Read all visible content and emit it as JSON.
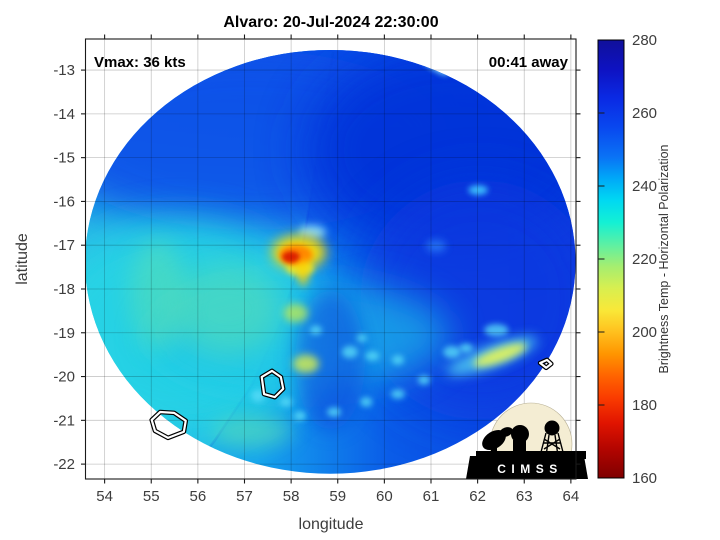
{
  "figure": {
    "title": "Alvaro: 20-Jul-2024 22:30:00",
    "annotation_vmax": "Vmax: 36 kts",
    "annotation_time": "00:41 away",
    "background": "#ffffff"
  },
  "logo": {
    "label": "CIMSS"
  },
  "chart_data": {
    "type": "heatmap",
    "title": "Alvaro: 20-Jul-2024 22:30:00",
    "xlabel": "longitude",
    "ylabel": "latitude",
    "xlim": [
      53.59,
      64.11
    ],
    "ylim": [
      -22.34,
      -12.29
    ],
    "xticks": [
      54,
      55,
      56,
      57,
      58,
      59,
      60,
      61,
      62,
      63,
      64
    ],
    "yticks": [
      -13,
      -14,
      -15,
      -16,
      -17,
      -18,
      -19,
      -20,
      -21,
      -22
    ],
    "grid": true,
    "annotations": [
      {
        "text": "Vmax: 36 kts",
        "corner": "top-left"
      },
      {
        "text": "00:41 away",
        "corner": "top-right"
      }
    ],
    "colorbar": {
      "label": "Brightness Temp - Horizontal Polarization",
      "ticks": [
        280,
        260,
        240,
        220,
        200,
        180,
        160
      ],
      "range": [
        160,
        280
      ],
      "colormap": [
        {
          "value": 160,
          "color": "#7f0000"
        },
        {
          "value": 168,
          "color": "#b30500"
        },
        {
          "value": 175,
          "color": "#e01400"
        },
        {
          "value": 182,
          "color": "#fa3c00"
        },
        {
          "value": 188,
          "color": "#ff6400"
        },
        {
          "value": 194,
          "color": "#ff9500"
        },
        {
          "value": 200,
          "color": "#ffc01e"
        },
        {
          "value": 206,
          "color": "#f9e838"
        },
        {
          "value": 212,
          "color": "#d8ef50"
        },
        {
          "value": 218,
          "color": "#a5ee70"
        },
        {
          "value": 224,
          "color": "#5cf0a4"
        },
        {
          "value": 230,
          "color": "#14f0d4"
        },
        {
          "value": 236,
          "color": "#00d9f2"
        },
        {
          "value": 242,
          "color": "#00a9f8"
        },
        {
          "value": 248,
          "color": "#0a72f5"
        },
        {
          "value": 256,
          "color": "#0948ef"
        },
        {
          "value": 264,
          "color": "#0a2ae4"
        },
        {
          "value": 272,
          "color": "#0e12c2"
        },
        {
          "value": 280,
          "color": "#10109a"
        }
      ]
    },
    "swath": {
      "center_lon": 58.84,
      "center_lat": -17.38,
      "radius_lon": 5.26,
      "radius_lat": 4.84,
      "outside_color": "#ffffff"
    },
    "base_field": {
      "description": "ambient brightness temp: cyan (~238 K) west side to deep blue (~258-262 K) east side, blue across northern half",
      "stops": [
        {
          "off": 0.0,
          "color": "#24b4e8"
        },
        {
          "off": 0.35,
          "color": "#16a4ee"
        },
        {
          "off": 0.62,
          "color": "#0a5ce8"
        },
        {
          "off": 1.0,
          "color": "#0a3ce0"
        }
      ],
      "north_overlay_stops": [
        {
          "off": 0.0,
          "color": "rgba(10,74,232,0.95)"
        },
        {
          "off": 0.3,
          "color": "rgba(10,74,232,0.50)"
        },
        {
          "off": 0.55,
          "color": "rgba(10,74,232,0)"
        }
      ]
    },
    "seam": {
      "description": "swath seam, west side brighter/cyan",
      "points": [
        [
          58.9,
          -12.59
        ],
        [
          58.66,
          -14.14
        ],
        [
          58.41,
          -15.97
        ],
        [
          58.19,
          -17.34
        ],
        [
          57.8,
          -18.71
        ],
        [
          57.16,
          -20.19
        ],
        [
          56.37,
          -21.45
        ],
        [
          55.96,
          -22.02
        ]
      ],
      "west_tint": "#3ce2e6",
      "edge_color": "#0a46d8"
    },
    "features": [
      {
        "name": "blue-upper",
        "lon": 57.12,
        "lat": -14.6,
        "rx": 4.29,
        "ry": 2.05,
        "color": "#0b50e8",
        "blur": 20,
        "op": 0.85
      },
      {
        "name": "dark-blue-top-right",
        "lon": 61.52,
        "lat": -14.83,
        "rx": 3.22,
        "ry": 2.4,
        "color": "#0531d8",
        "blur": 25,
        "op": 0.9,
        "tb": 262
      },
      {
        "name": "dark-blue-right",
        "lon": 62.05,
        "lat": -18.25,
        "rx": 2.58,
        "ry": 2.74,
        "color": "#0838e0",
        "blur": 25,
        "op": 0.8
      },
      {
        "name": "cyan-left-lower",
        "lon": 55.62,
        "lat": -18.94,
        "rx": 3.0,
        "ry": 2.51,
        "color": "#26d4e4",
        "blur": 20,
        "op": 0.85,
        "tb": 237
      },
      {
        "name": "cyan-band-lower",
        "lon": 58.19,
        "lat": -19.05,
        "rx": 3.22,
        "ry": 1.26,
        "color": "#1cc4ea",
        "blur": 18,
        "op": 0.65
      },
      {
        "name": "green-patch-left",
        "lon": 56.65,
        "lat": -18.48,
        "rx": 1.18,
        "ry": 1.03,
        "color": "#66e2a8",
        "blur": 15,
        "op": 0.5,
        "tb": 227
      },
      {
        "name": "green-left-edge",
        "lon": 55.14,
        "lat": -18.14,
        "rx": 0.6,
        "ry": 1.26,
        "color": "#7ce896",
        "blur": 12,
        "op": 0.35
      },
      {
        "name": "green-bottom-left",
        "lon": 57.16,
        "lat": -21.26,
        "rx": 0.86,
        "ry": 0.37,
        "color": "#5ce0b4",
        "blur": 10,
        "op": 0.6
      },
      {
        "name": "dark-blue-east-of-seam",
        "lon": 58.84,
        "lat": -19.62,
        "rx": 0.75,
        "ry": 1.6,
        "color": "#0840dc",
        "blur": 10,
        "op": 0.55
      },
      {
        "name": "yellow-cell",
        "lon": 58.19,
        "lat": -17.52,
        "rx": 0.3,
        "ry": 0.18,
        "color": "#d8e84c",
        "blur": 3,
        "op": 0.9,
        "tb": 214
      },
      {
        "name": "yellow-cell",
        "lon": 58.1,
        "lat": -18.55,
        "rx": 0.26,
        "ry": 0.21,
        "color": "#b8e858",
        "blur": 4,
        "op": 0.8,
        "tb": 218
      },
      {
        "name": "yellow-cell",
        "lon": 58.32,
        "lat": -19.71,
        "rx": 0.28,
        "ry": 0.21,
        "color": "#cdea55",
        "blur": 4,
        "op": 0.85,
        "tb": 216
      },
      {
        "name": "cyan-glow-streak",
        "lon": 62.31,
        "lat": -19.53,
        "rx": 1.03,
        "ry": 0.25,
        "color": "#55d8f2",
        "blur": 6,
        "op": 0.8,
        "rot": -20
      },
      {
        "name": "yellow-streak-east",
        "lon": 62.48,
        "lat": -19.51,
        "rx": 0.6,
        "ry": 0.16,
        "color": "#dff25e",
        "blur": 4,
        "op": 0.95,
        "rot": -20,
        "tb": 213
      },
      {
        "name": "cyan-streak-top",
        "lon": 61.05,
        "lat": -12.86,
        "rx": 0.39,
        "ry": 0.11,
        "color": "#8ceefc",
        "blur": 3,
        "op": 0.9,
        "rot": 35,
        "tb": 233
      },
      {
        "name": "cyan-speckle",
        "lon": 62.01,
        "lat": -15.74,
        "rx": 0.21,
        "ry": 0.11,
        "color": "#40c8ff",
        "blur": 3,
        "op": 0.9
      },
      {
        "name": "cyan-speckle",
        "lon": 62.4,
        "lat": -18.94,
        "rx": 0.26,
        "ry": 0.14,
        "color": "#58d8f8",
        "blur": 3,
        "op": 0.8
      },
      {
        "name": "blue-speckle",
        "lon": 61.11,
        "lat": -17.02,
        "rx": 0.21,
        "ry": 0.14,
        "color": "#2a7ef8",
        "blur": 4,
        "op": 0.8
      },
      {
        "name": "rainband-dot",
        "lon": 59.26,
        "lat": -19.44,
        "rx": 0.17,
        "ry": 0.14,
        "color": "#58dcf8",
        "blur": 3,
        "op": 0.8
      },
      {
        "name": "rainband-dot",
        "lon": 59.74,
        "lat": -19.53,
        "rx": 0.15,
        "ry": 0.11,
        "color": "#58dcf8",
        "blur": 3,
        "op": 0.8
      },
      {
        "name": "rainband-dot",
        "lon": 60.29,
        "lat": -19.62,
        "rx": 0.13,
        "ry": 0.11,
        "color": "#58dcf8",
        "blur": 3,
        "op": 0.8
      },
      {
        "name": "rainband-dot",
        "lon": 61.45,
        "lat": -19.44,
        "rx": 0.19,
        "ry": 0.14,
        "color": "#58dcf8",
        "blur": 3,
        "op": 0.8
      },
      {
        "name": "rainband-dot",
        "lon": 61.75,
        "lat": -19.35,
        "rx": 0.15,
        "ry": 0.11,
        "color": "#58dcf8",
        "blur": 3,
        "op": 0.8
      },
      {
        "name": "rainband-dot",
        "lon": 57.29,
        "lat": -20.44,
        "rx": 0.15,
        "ry": 0.14,
        "color": "#58dcf8",
        "blur": 3,
        "op": 0.8
      },
      {
        "name": "rainband-dot",
        "lon": 57.89,
        "lat": -20.58,
        "rx": 0.13,
        "ry": 0.11,
        "color": "#58dcf8",
        "blur": 3,
        "op": 0.8
      },
      {
        "name": "rainband-dot",
        "lon": 58.19,
        "lat": -20.9,
        "rx": 0.13,
        "ry": 0.11,
        "color": "#58dcf8",
        "blur": 3,
        "op": 0.8
      },
      {
        "name": "rainband-dot",
        "lon": 58.92,
        "lat": -20.81,
        "rx": 0.15,
        "ry": 0.11,
        "color": "#58dcf8",
        "blur": 3,
        "op": 0.8
      },
      {
        "name": "rainband-dot",
        "lon": 59.61,
        "lat": -20.58,
        "rx": 0.13,
        "ry": 0.11,
        "color": "#58dcf8",
        "blur": 3,
        "op": 0.8
      },
      {
        "name": "rainband-dot",
        "lon": 60.29,
        "lat": -20.4,
        "rx": 0.15,
        "ry": 0.11,
        "color": "#58dcf8",
        "blur": 3,
        "op": 0.8
      },
      {
        "name": "rainband-dot",
        "lon": 60.85,
        "lat": -20.08,
        "rx": 0.13,
        "ry": 0.11,
        "color": "#58dcf8",
        "blur": 3,
        "op": 0.8
      },
      {
        "name": "rainband-dot",
        "lon": 58.53,
        "lat": -18.94,
        "rx": 0.13,
        "ry": 0.11,
        "color": "#58dcf8",
        "blur": 3,
        "op": 0.8
      },
      {
        "name": "rainband-dot",
        "lon": 59.52,
        "lat": -19.12,
        "rx": 0.11,
        "ry": 0.09,
        "color": "#58dcf8",
        "blur": 3,
        "op": 0.8
      },
      {
        "name": "burst-light-above",
        "lon": 58.45,
        "lat": -16.7,
        "rx": 0.3,
        "ry": 0.16,
        "color": "#9ae8ff",
        "blur": 4,
        "op": 0.8
      },
      {
        "name": "burst-halo",
        "lon": 58.17,
        "lat": -17.16,
        "rx": 0.58,
        "ry": 0.39,
        "color": "#ffdf00",
        "blur": 6,
        "op": 0.95,
        "tb": 205
      },
      {
        "name": "burst-core",
        "lon": 58.1,
        "lat": -17.22,
        "rx": 0.36,
        "ry": 0.23,
        "color": "#ff8800",
        "blur": 3,
        "op": 1,
        "tb": 192
      },
      {
        "name": "burst-min",
        "lon": 58.0,
        "lat": -17.27,
        "rx": 0.19,
        "ry": 0.13,
        "color": "#dd2200",
        "blur": 2,
        "op": 1,
        "tb": 178
      },
      {
        "name": "burst-tail",
        "lon": 58.26,
        "lat": -17.63,
        "rx": 0.13,
        "ry": 0.3,
        "color": "#ffd400",
        "blur": 4,
        "op": 0.75
      }
    ],
    "contours": [
      {
        "name": "tb-contour",
        "points": [
          [
            55.01,
            -20.99
          ],
          [
            55.19,
            -20.81
          ],
          [
            55.49,
            -20.83
          ],
          [
            55.74,
            -21.01
          ],
          [
            55.7,
            -21.26
          ],
          [
            55.36,
            -21.4
          ],
          [
            55.08,
            -21.24
          ]
        ]
      },
      {
        "name": "tb-contour",
        "points": [
          [
            57.37,
            -20.01
          ],
          [
            57.59,
            -19.87
          ],
          [
            57.78,
            -20.01
          ],
          [
            57.83,
            -20.28
          ],
          [
            57.65,
            -20.47
          ],
          [
            57.42,
            -20.4
          ]
        ]
      },
      {
        "name": "tb-contour",
        "points": [
          [
            63.34,
            -19.69
          ],
          [
            63.49,
            -19.62
          ],
          [
            63.58,
            -19.71
          ],
          [
            63.47,
            -19.8
          ]
        ]
      }
    ]
  }
}
